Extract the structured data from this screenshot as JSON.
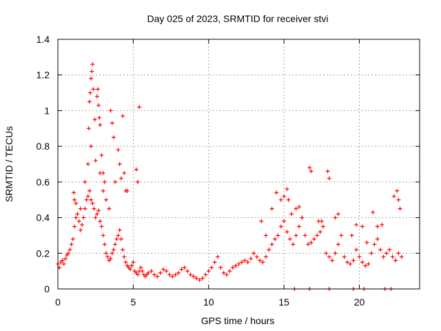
{
  "chart_data": {
    "type": "scatter",
    "title": "Day 025 of 2023, SRMTID for receiver stvi",
    "xlabel": "GPS time / hours",
    "ylabel": "SRMTID / TECUs",
    "xlim": [
      0,
      24
    ],
    "ylim": [
      0,
      1.4
    ],
    "xticks": [
      0,
      5,
      10,
      15,
      20
    ],
    "yticks": [
      0,
      0.2,
      0.4,
      0.6,
      0.8,
      1,
      1.2,
      1.4
    ],
    "ytick_labels": [
      "0",
      "0.2",
      "0.4",
      "0.6",
      "0.8",
      "1",
      "1.2",
      "1.4"
    ],
    "grid": true,
    "marker": "+",
    "color": "#ff0000",
    "series": [
      {
        "name": "SRMTID",
        "x": [
          0.0,
          0.1,
          0.2,
          0.3,
          0.4,
          0.5,
          0.6,
          0.7,
          0.8,
          0.9,
          1.0,
          1.1,
          1.2,
          1.3,
          1.4,
          1.5,
          1.6,
          1.7,
          1.8,
          1.9,
          2.0,
          2.1,
          2.2,
          2.3,
          2.4,
          2.5,
          2.6,
          2.7,
          2.8,
          2.9,
          3.0,
          3.1,
          3.2,
          3.3,
          3.4,
          3.5,
          3.6,
          3.7,
          3.8,
          3.9,
          4.0,
          4.1,
          4.2,
          4.3,
          4.4,
          4.5,
          4.6,
          4.7,
          4.8,
          4.9,
          5.0,
          5.1,
          5.2,
          5.3,
          5.4,
          5.5,
          5.6,
          5.7,
          5.8,
          5.9,
          6.0,
          6.2,
          6.4,
          6.6,
          6.8,
          7.0,
          7.2,
          7.4,
          7.6,
          7.8,
          8.0,
          8.2,
          8.4,
          8.6,
          8.8,
          9.0,
          9.2,
          9.4,
          9.6,
          9.8,
          10.0,
          10.2,
          10.4,
          10.6,
          10.8,
          11.0,
          11.2,
          11.4,
          11.6,
          11.8,
          12.0,
          12.2,
          12.4,
          12.6,
          12.8,
          13.0,
          13.2,
          13.4,
          13.6,
          13.8,
          14.0,
          14.2,
          14.4,
          14.6,
          14.8,
          15.0,
          15.2,
          15.4,
          15.6,
          15.8,
          16.0,
          16.2,
          16.4,
          16.6,
          16.8,
          17.0,
          17.2,
          17.4,
          17.6,
          17.8,
          18.0,
          18.2,
          18.4,
          18.6,
          18.8,
          19.0,
          19.2,
          19.4,
          19.6,
          19.8,
          20.0,
          20.2,
          20.4,
          20.6,
          20.8,
          21.0,
          21.2,
          21.4,
          21.6,
          21.8,
          22.0,
          22.2,
          22.4,
          22.6,
          22.8,
          2.05,
          2.1,
          2.15,
          2.2,
          2.25,
          2.3,
          2.35,
          2.45,
          2.6,
          2.65,
          2.7,
          2.75,
          2.8,
          2.9,
          3.0,
          3.1,
          3.5,
          3.6,
          3.7,
          4.0,
          4.1,
          4.3,
          4.4,
          4.5,
          5.2,
          5.3,
          5.4,
          1.05,
          1.1,
          1.2,
          1.5,
          1.8,
          2.0,
          2.2,
          2.5,
          2.8,
          3.0,
          3.2,
          3.4,
          3.8,
          4.2,
          4.6,
          13.5,
          13.8,
          14.2,
          14.5,
          14.8,
          15.0,
          15.2,
          15.3,
          15.5,
          15.8,
          16.0,
          16.2,
          16.7,
          16.8,
          17.3,
          17.5,
          17.9,
          18.0,
          18.4,
          18.6,
          19.5,
          19.8,
          20.2,
          20.5,
          20.9,
          21.2,
          21.5,
          22.3,
          22.5,
          22.6,
          22.7,
          15.7,
          16.7,
          18.0,
          19.6,
          20.3,
          21.7,
          22.1
        ],
        "y": [
          0.14,
          0.12,
          0.15,
          0.16,
          0.14,
          0.17,
          0.19,
          0.2,
          0.22,
          0.25,
          0.28,
          0.35,
          0.4,
          0.42,
          0.38,
          0.33,
          0.36,
          0.4,
          0.45,
          0.5,
          0.52,
          0.55,
          0.5,
          0.48,
          0.45,
          0.4,
          0.42,
          0.44,
          0.38,
          0.35,
          0.3,
          0.25,
          0.2,
          0.18,
          0.16,
          0.17,
          0.2,
          0.22,
          0.25,
          0.28,
          0.3,
          0.33,
          0.28,
          0.22,
          0.18,
          0.15,
          0.13,
          0.12,
          0.11,
          0.13,
          0.15,
          0.1,
          0.09,
          0.08,
          0.1,
          0.12,
          0.1,
          0.08,
          0.07,
          0.08,
          0.09,
          0.1,
          0.08,
          0.07,
          0.09,
          0.11,
          0.1,
          0.08,
          0.07,
          0.08,
          0.09,
          0.11,
          0.12,
          0.1,
          0.08,
          0.07,
          0.06,
          0.05,
          0.06,
          0.08,
          0.1,
          0.12,
          0.15,
          0.18,
          0.12,
          0.09,
          0.08,
          0.1,
          0.12,
          0.13,
          0.14,
          0.15,
          0.16,
          0.15,
          0.17,
          0.2,
          0.18,
          0.16,
          0.15,
          0.18,
          0.22,
          0.25,
          0.28,
          0.3,
          0.35,
          0.38,
          0.32,
          0.28,
          0.25,
          0.3,
          0.35,
          0.4,
          0.3,
          0.25,
          0.26,
          0.28,
          0.3,
          0.32,
          0.35,
          0.2,
          0.18,
          0.16,
          0.2,
          0.25,
          0.3,
          0.18,
          0.15,
          0.14,
          0.16,
          0.22,
          0.18,
          0.15,
          0.13,
          0.14,
          0.2,
          0.25,
          0.28,
          0.22,
          0.18,
          0.2,
          0.22,
          0.18,
          0.16,
          0.2,
          0.18,
          0.9,
          1.05,
          1.1,
          1.18,
          1.22,
          1.26,
          1.12,
          0.95,
          1.08,
          1.12,
          1.03,
          0.96,
          0.92,
          0.75,
          0.65,
          0.6,
          1.0,
          0.93,
          0.85,
          0.78,
          0.7,
          0.97,
          0.65,
          0.55,
          0.67,
          0.6,
          1.02,
          0.54,
          0.5,
          0.48,
          0.45,
          0.6,
          0.7,
          0.8,
          0.72,
          0.65,
          0.55,
          0.5,
          0.45,
          0.6,
          0.62,
          0.55,
          0.38,
          0.3,
          0.45,
          0.54,
          0.5,
          0.52,
          0.56,
          0.5,
          0.42,
          0.45,
          0.46,
          0.4,
          0.68,
          0.66,
          0.38,
          0.38,
          0.66,
          0.62,
          0.4,
          0.42,
          0.3,
          0.36,
          0.35,
          0.26,
          0.43,
          0.35,
          0.36,
          0.52,
          0.55,
          0.5,
          0.45,
          0.0,
          0.0,
          0.0,
          0.0,
          0.0,
          0.0,
          0.0
        ]
      }
    ]
  }
}
